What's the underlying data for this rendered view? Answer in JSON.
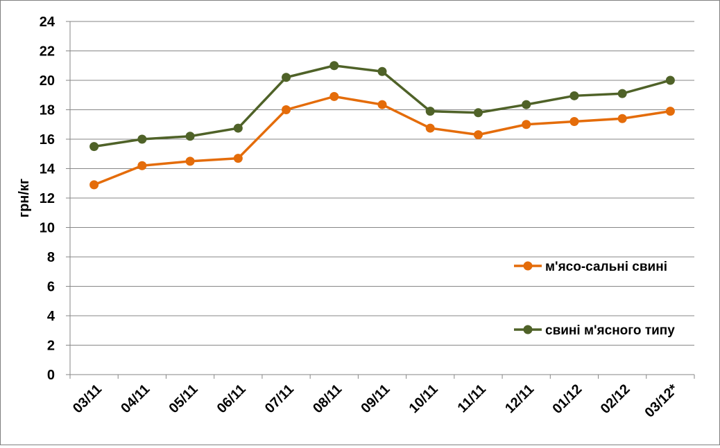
{
  "chart_data": {
    "type": "line",
    "title": "",
    "xlabel": "",
    "ylabel": "грн/кг",
    "ylim": [
      0,
      24
    ],
    "yticks": [
      "0",
      "2",
      "4",
      "6",
      "8",
      "10",
      "12",
      "14",
      "16",
      "18",
      "20",
      "22",
      "24"
    ],
    "grid": true,
    "legend_position": "right",
    "categories": [
      "03/11",
      "04/11",
      "05/11",
      "06/11",
      "07/11",
      "08/11",
      "09/11",
      "10/11",
      "11/11",
      "12/11",
      "01/12",
      "02/12",
      "03/12*"
    ],
    "series": [
      {
        "name": "м'ясо-сальні свині",
        "color": "#E46C0A",
        "values": [
          12.9,
          14.2,
          14.5,
          14.7,
          18.0,
          18.9,
          18.35,
          16.75,
          16.3,
          17.0,
          17.2,
          17.4,
          17.9
        ]
      },
      {
        "name": "свині м'ясного типу",
        "color": "#4F6228",
        "values": [
          15.5,
          16.0,
          16.2,
          16.75,
          20.2,
          21.0,
          20.6,
          17.9,
          17.8,
          18.35,
          18.95,
          19.1,
          20.0
        ]
      }
    ]
  }
}
